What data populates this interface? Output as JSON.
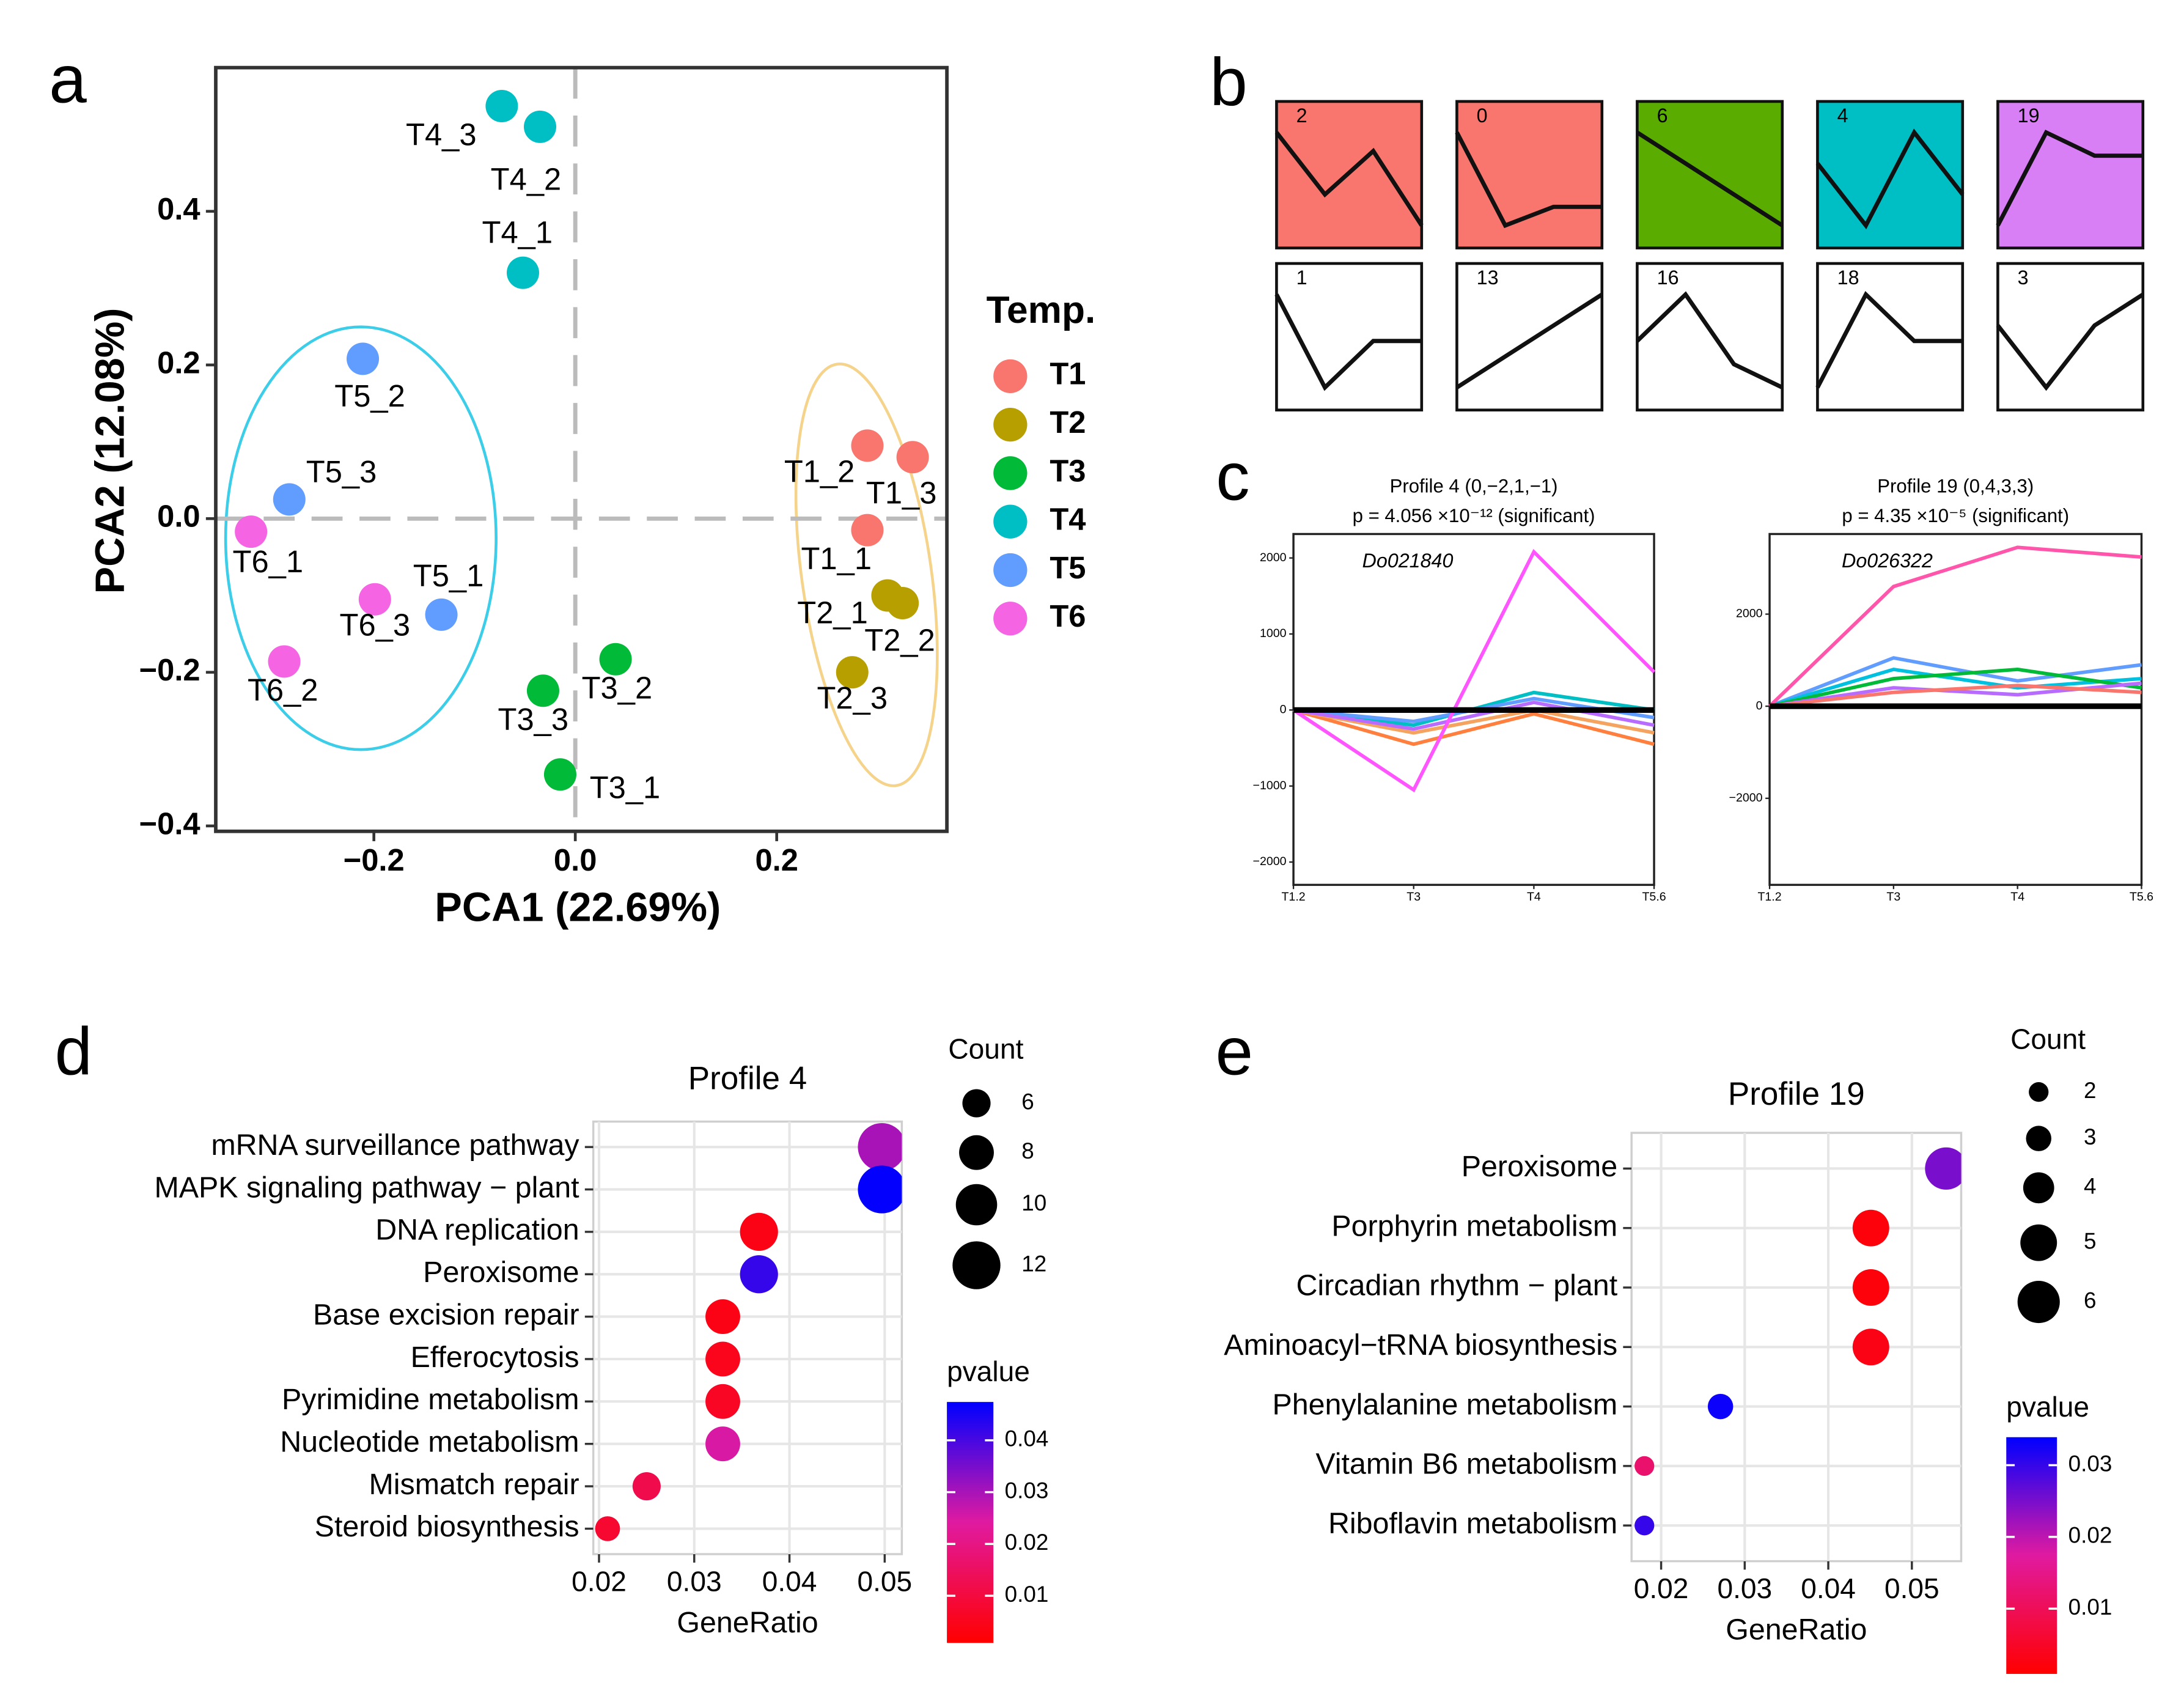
{
  "chart_data": [
    {
      "type": "scatter",
      "panel": "a",
      "xlabel": "PCA1 (22.69%)",
      "ylabel": "PCA2 (12.08%)",
      "xlim": [
        -0.357,
        0.369
      ],
      "ylim": [
        -0.407,
        0.587
      ],
      "xticks": [
        {
          "value": -0.2,
          "label": "−0.2"
        },
        {
          "value": 0,
          "label": "0.0"
        },
        0.2
      ],
      "yticks": [
        {
          "value": -0.4,
          "label": "−0.4"
        },
        {
          "value": -0.2,
          "label": "−0.2"
        },
        {
          "value": 0,
          "label": "0.0"
        },
        0.2,
        0.4
      ],
      "legend_title": "Temp.",
      "series": [
        {
          "name": "T1",
          "color": "#f8766d",
          "x": [
            0.29,
            0.29,
            0.335
          ],
          "y": [
            -0.015,
            0.095,
            0.08
          ],
          "labels": [
            "T1_1",
            "T1_2",
            "T1_3"
          ]
        },
        {
          "name": "T2",
          "color": "#b79f00",
          "x": [
            0.31,
            0.325,
            0.275
          ],
          "y": [
            -0.1,
            -0.11,
            -0.2
          ],
          "labels": [
            "T2_1",
            "T2_2",
            "T2_3"
          ]
        },
        {
          "name": "T3",
          "color": "#00ba38",
          "x": [
            -0.015,
            0.04,
            -0.032
          ],
          "y": [
            -0.333,
            -0.183,
            -0.224
          ],
          "labels": [
            "T3_1",
            "T3_2",
            "T3_3"
          ]
        },
        {
          "name": "T4",
          "color": "#00bfc4",
          "x": [
            -0.052,
            -0.035,
            -0.073
          ],
          "y": [
            0.32,
            0.51,
            0.537
          ],
          "labels": [
            "T4_1",
            "T4_2",
            "T4_3"
          ]
        },
        {
          "name": "T5",
          "color": "#619cff",
          "x": [
            -0.133,
            -0.211,
            -0.284
          ],
          "y": [
            -0.125,
            0.208,
            0.025
          ],
          "labels": [
            "T5_1",
            "T5_2",
            "T5_3"
          ]
        },
        {
          "name": "T6",
          "color": "#f564e3",
          "x": [
            -0.322,
            -0.289,
            -0.199
          ],
          "y": [
            -0.017,
            -0.186,
            -0.105
          ],
          "labels": [
            "T6_1",
            "T6_2",
            "T6_3"
          ]
        }
      ]
    },
    {
      "type": "profiles",
      "panel": "b",
      "profiles": [
        {
          "label": "2",
          "color": "#f8766d",
          "values": [
            0,
            -1,
            -0.3,
            -1.5
          ]
        },
        {
          "label": "0",
          "color": "#f8766d",
          "values": [
            0,
            -1.5,
            -1.2,
            -1.2
          ]
        },
        {
          "label": "6",
          "color": "#5aad00",
          "values": [
            0,
            -1,
            -2,
            -3
          ]
        },
        {
          "label": "4",
          "color": "#00bfc4",
          "values": [
            0,
            -2,
            1,
            -1
          ]
        },
        {
          "label": "19",
          "color": "#d97ff5",
          "values": [
            0,
            4,
            3,
            3
          ]
        },
        {
          "label": "1",
          "color": null,
          "values": [
            0,
            -2,
            -1,
            -1
          ]
        },
        {
          "label": "13",
          "color": null,
          "values": [
            0,
            1,
            2,
            3
          ]
        },
        {
          "label": "16",
          "color": null,
          "values": [
            0,
            2,
            -1,
            -2
          ]
        },
        {
          "label": "18",
          "color": null,
          "values": [
            0,
            2,
            1,
            1
          ]
        },
        {
          "label": "3",
          "color": null,
          "values": [
            0,
            -2,
            0,
            1
          ]
        }
      ]
    },
    {
      "type": "line",
      "panel": "c",
      "title": "Profile 4 (0,−2,1,−1)",
      "subtitle": "p = 4.056 ×10⁻¹²  (significant)",
      "annotation": "Do021840",
      "categories": [
        "T1.2",
        "T3",
        "T4",
        "T5.6"
      ],
      "ylim": [
        -2300,
        2315
      ],
      "yticks": [
        {
          "value": -2000,
          "label": "−2000"
        },
        {
          "value": -1000,
          "label": "−1000"
        },
        0,
        1000,
        2000
      ],
      "series": [
        {
          "color": "#ff7f3f",
          "values": [
            0,
            -450,
            -50,
            -450
          ]
        },
        {
          "color": "#f4a460",
          "values": [
            0,
            -300,
            0,
            -300
          ]
        },
        {
          "color": "#00bfc4",
          "values": [
            0,
            -200,
            230,
            0
          ]
        },
        {
          "color": "#619cff",
          "values": [
            0,
            -150,
            150,
            -100
          ]
        },
        {
          "color": "#b76cff",
          "values": [
            0,
            -250,
            100,
            -200
          ]
        },
        {
          "color": "#ff55ff",
          "values": [
            0,
            -1050,
            2080,
            500
          ]
        },
        {
          "color": "#000000",
          "values": [
            0,
            0,
            0,
            0
          ]
        }
      ]
    },
    {
      "type": "line",
      "title": "Profile 19 (0,4,3,3)",
      "subtitle": "p = 4.35 ×10⁻⁵  (significant)",
      "annotation": "Do026322",
      "categories": [
        "T1.2",
        "T3",
        "T4",
        "T5.6"
      ],
      "ylim": [
        -3880,
        3740
      ],
      "yticks": [
        {
          "value": -2000,
          "label": "−2000"
        },
        0,
        2000
      ],
      "series": [
        {
          "color": "#619cff",
          "values": [
            0,
            1050,
            550,
            900
          ]
        },
        {
          "color": "#00c0e0",
          "values": [
            0,
            800,
            400,
            600
          ]
        },
        {
          "color": "#00ba38",
          "values": [
            0,
            600,
            800,
            400
          ]
        },
        {
          "color": "#b76cff",
          "values": [
            0,
            400,
            250,
            500
          ]
        },
        {
          "color": "#f8766d",
          "values": [
            0,
            300,
            450,
            300
          ]
        },
        {
          "color": "#ff55aa",
          "values": [
            0,
            2600,
            3450,
            3240
          ]
        },
        {
          "color": "#000000",
          "values": [
            0,
            0,
            0,
            0
          ]
        }
      ]
    },
    {
      "type": "dot",
      "panel": "d",
      "title": "Profile 4",
      "xlabel": "GeneRatio",
      "categories": [
        "mRNA surveillance pathway",
        "MAPK signaling pathway − plant",
        "DNA replication",
        "Peroxisome",
        "Base excision repair",
        "Efferocytosis",
        "Pyrimidine metabolism",
        "Nucleotide metabolism",
        "Mismatch repair",
        "Steroid biosynthesis"
      ],
      "x": [
        0.0497,
        0.0497,
        0.0368,
        0.0368,
        0.033,
        0.033,
        0.033,
        0.033,
        0.025,
        0.0209
      ],
      "count": [
        12,
        12,
        9,
        9,
        8,
        8,
        8,
        8,
        6,
        5
      ],
      "pvalue": [
        0.03,
        0.047,
        0.004,
        0.042,
        0.004,
        0.005,
        0.006,
        0.025,
        0.012,
        0.008
      ],
      "xlim": [
        0.0194,
        0.0518
      ],
      "xticks": [
        0.02,
        0.03,
        0.04,
        0.05
      ],
      "size_title": "Count",
      "size_ticks": [
        6,
        8,
        10,
        12
      ],
      "color_title": "pvalue",
      "color_ticks": [
        0.01,
        0.02,
        0.03,
        0.04
      ],
      "color_lim": [
        0.0009,
        0.0474
      ],
      "colors": [
        "#ff0000",
        "#0000ff"
      ]
    },
    {
      "type": "dot",
      "panel": "e",
      "title": "Profile 19",
      "xlabel": "GeneRatio",
      "categories": [
        "Peroxisome",
        "Porphyrin metabolism",
        "Circadian rhythm − plant",
        "Aminoacyl−tRNA biosynthesis",
        "Phenylalanine metabolism",
        "Vitamin B6 metabolism",
        "Riboflavin metabolism"
      ],
      "x": [
        0.0541,
        0.0451,
        0.0451,
        0.0451,
        0.0271,
        0.018,
        0.018
      ],
      "count": [
        6,
        5,
        5,
        5,
        3,
        2,
        2
      ],
      "pvalue": [
        0.025,
        0.002,
        0.002,
        0.003,
        0.033,
        0.012,
        0.03
      ],
      "xlim": [
        0.01646,
        0.0559
      ],
      "xticks": [
        0.02,
        0.03,
        0.04,
        0.05
      ],
      "size_title": "Count",
      "size_ticks": [
        2,
        3,
        4,
        5,
        6
      ],
      "color_title": "pvalue",
      "color_ticks": [
        0.01,
        0.02,
        0.03
      ],
      "color_lim": [
        0.0009,
        0.0339
      ],
      "colors": [
        "#ff0000",
        "#0000ff"
      ]
    }
  ]
}
